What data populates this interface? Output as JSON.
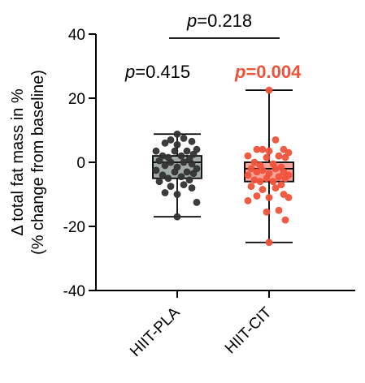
{
  "chart_data": {
    "type": "box",
    "ylabel_line1": "Δ total fat mass in %",
    "ylabel_line2": "(% change from baseline)",
    "ylim": [
      -40,
      40
    ],
    "yticks": [
      40,
      20,
      0,
      -20,
      -40
    ],
    "ytick_labels": [
      "40",
      "20",
      "0",
      "-20",
      "-40"
    ],
    "categories": [
      "HIIT-PLA",
      "HIIT-CIT"
    ],
    "colors": {
      "pla_fill": "#a2acab",
      "pla_point": "#333333",
      "cit_fill": "#f7a59a",
      "cit_point": "#f0533a",
      "sig_text": "#f0533a"
    },
    "groups": [
      {
        "name": "HIIT-PLA",
        "box": {
          "min": -17,
          "q1": -5,
          "median": 0,
          "q3": 2,
          "max": 8.8
        },
        "points": [
          8.8,
          7.5,
          7,
          6.5,
          6,
          5.5,
          4,
          3.5,
          3.5,
          3.5,
          2.5,
          2,
          2,
          1.5,
          1,
          0.5,
          0,
          0,
          -0.5,
          -1,
          -1.5,
          -2,
          -2.5,
          -3,
          -3,
          -3.5,
          -4,
          -4.5,
          -5,
          -5.5,
          -6,
          -7,
          -7.5,
          -8,
          -9.5,
          -10,
          -12.5,
          -17
        ]
      },
      {
        "name": "HIIT-CIT",
        "box": {
          "min": -25,
          "q1": -6,
          "median": -2,
          "q3": 0,
          "max": 22.5
        },
        "points": [
          22.5,
          7,
          4,
          4,
          4,
          3.5,
          3,
          2,
          2,
          1.5,
          1.5,
          0,
          -0.5,
          -1,
          -1.5,
          -2,
          -2,
          -2.5,
          -3,
          -3,
          -3.5,
          -4,
          -4,
          -4.5,
          -5,
          -5,
          -5.5,
          -6,
          -6,
          -7,
          -7.5,
          -8,
          -8.5,
          -10,
          -10.5,
          -11,
          -11,
          -12,
          -15,
          -15.5,
          -18,
          -25
        ]
      }
    ],
    "annotations": {
      "pla_p": "=0.415",
      "cit_p": "=0.004",
      "between_p": "=0.218",
      "p_letter": "p"
    }
  }
}
